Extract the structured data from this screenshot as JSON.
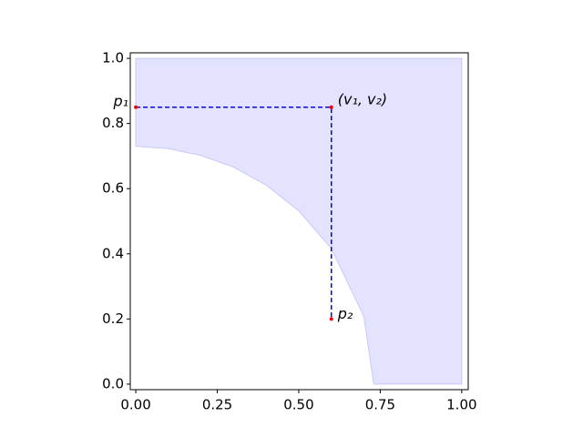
{
  "chart_data": {
    "type": "line",
    "xlim": [
      -0.017,
      1.02
    ],
    "ylim": [
      -0.017,
      1.017
    ],
    "xticks": [
      {
        "value": 0,
        "label": "0.00"
      },
      0.25,
      {
        "value": 0.5,
        "label": "0.50"
      },
      0.75,
      {
        "value": 1,
        "label": "1.00"
      }
    ],
    "yticks": [
      {
        "value": 0,
        "label": "0.0"
      },
      0.2,
      0.4,
      0.6,
      0.8,
      {
        "value": 1,
        "label": "1.0"
      }
    ],
    "fill": {
      "color": "#e3e3ff",
      "edge_color": "#c8c8f4",
      "x": [
        0,
        0.1,
        0.2,
        0.3,
        0.4,
        0.5,
        0.6,
        0.7,
        0.73,
        1.0
      ],
      "y_lower": [
        0.73,
        0.723,
        0.702,
        0.666,
        0.611,
        0.532,
        0.416,
        0.207,
        0,
        0
      ],
      "y_upper": [
        1,
        1,
        1,
        1,
        1,
        1,
        1,
        1,
        1,
        1
      ]
    },
    "series": [
      {
        "x": [
          0,
          0.6,
          0.6
        ],
        "values": [
          0.85,
          0.85,
          0.2
        ],
        "color": "#0000ee",
        "dashed": true
      }
    ],
    "points": {
      "x": [
        0,
        0.6,
        0.6
      ],
      "values": [
        0.85,
        0.85,
        0.2
      ],
      "color": "#ee0000",
      "labels": [
        "p₁",
        "(v₁, v₂)",
        "p₂"
      ]
    }
  }
}
